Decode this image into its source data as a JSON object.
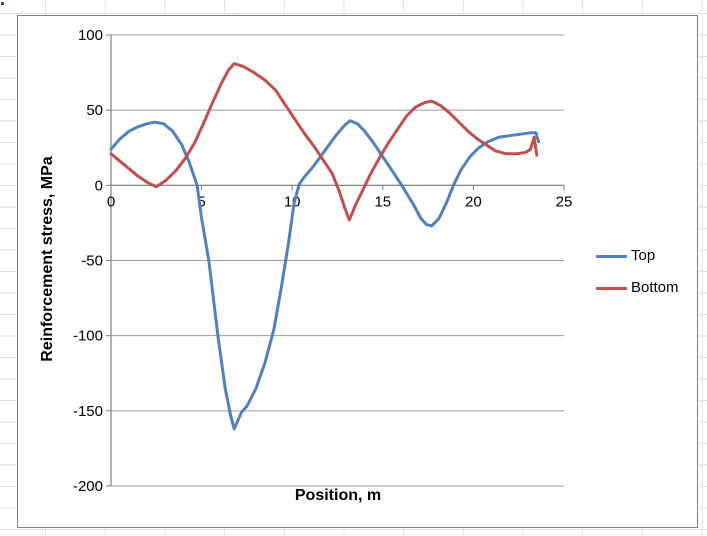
{
  "colors": {
    "series_top": "#4F81BD",
    "series_bottom": "#C0504D",
    "gridline": "#9b9b9b",
    "axis": "#7f7f7f",
    "text": "#000000",
    "chart_border": "#7e7e7e",
    "sheet_grid": "#dce2ec"
  },
  "legend": {
    "items": [
      {
        "label": "Top"
      },
      {
        "label": "Bottom"
      }
    ]
  },
  "chart_data": {
    "type": "line",
    "title": "",
    "xlabel": "Position, m",
    "ylabel": "Reinforcement stress, MPa",
    "xlim": [
      0,
      25
    ],
    "ylim": [
      -200,
      100
    ],
    "x_ticks": [
      0,
      5,
      10,
      15,
      20,
      25
    ],
    "y_ticks": [
      100,
      50,
      0,
      -50,
      -100,
      -150,
      -200
    ],
    "grid": "horizontal-major",
    "legend_position": "right",
    "series": [
      {
        "name": "Top",
        "color": "#4F81BD",
        "points": [
          [
            0,
            24
          ],
          [
            0.5,
            31
          ],
          [
            1,
            36
          ],
          [
            1.5,
            39
          ],
          [
            2,
            41
          ],
          [
            2.4,
            42
          ],
          [
            2.9,
            41
          ],
          [
            3.4,
            36
          ],
          [
            3.9,
            27
          ],
          [
            4.3,
            16
          ],
          [
            4.75,
            0
          ],
          [
            5,
            -22
          ],
          [
            5.4,
            -50
          ],
          [
            5.9,
            -100
          ],
          [
            6.3,
            -135
          ],
          [
            6.6,
            -153
          ],
          [
            6.8,
            -162
          ],
          [
            7.2,
            -151
          ],
          [
            7.5,
            -147
          ],
          [
            8,
            -135
          ],
          [
            8.5,
            -118
          ],
          [
            9,
            -95
          ],
          [
            9.4,
            -68
          ],
          [
            9.8,
            -38
          ],
          [
            10.1,
            -12
          ],
          [
            10.4,
            1
          ],
          [
            10.7,
            6
          ],
          [
            11.2,
            13
          ],
          [
            11.8,
            23
          ],
          [
            12.4,
            33
          ],
          [
            12.9,
            40
          ],
          [
            13.2,
            43
          ],
          [
            13.6,
            41
          ],
          [
            14,
            36
          ],
          [
            14.5,
            28
          ],
          [
            15,
            19
          ],
          [
            15.5,
            10
          ],
          [
            16.1,
            -1
          ],
          [
            16.7,
            -13
          ],
          [
            17.1,
            -22
          ],
          [
            17.4,
            -26
          ],
          [
            17.7,
            -27
          ],
          [
            18.1,
            -22
          ],
          [
            18.5,
            -12
          ],
          [
            18.9,
            0
          ],
          [
            19.3,
            10
          ],
          [
            19.8,
            19
          ],
          [
            20.3,
            25
          ],
          [
            20.8,
            29
          ],
          [
            21.4,
            32
          ],
          [
            22,
            33
          ],
          [
            22.6,
            34
          ],
          [
            23.2,
            35
          ],
          [
            23.45,
            35
          ],
          [
            23.6,
            29
          ]
        ]
      },
      {
        "name": "Bottom",
        "color": "#C0504D",
        "points": [
          [
            0,
            21
          ],
          [
            0.5,
            16
          ],
          [
            1,
            11
          ],
          [
            1.5,
            6
          ],
          [
            2,
            2
          ],
          [
            2.5,
            -1
          ],
          [
            3,
            3
          ],
          [
            3.6,
            10
          ],
          [
            4.1,
            18
          ],
          [
            4.6,
            28
          ],
          [
            5.1,
            41
          ],
          [
            5.6,
            55
          ],
          [
            6.1,
            68
          ],
          [
            6.5,
            77
          ],
          [
            6.8,
            81
          ],
          [
            7.3,
            79
          ],
          [
            7.9,
            75
          ],
          [
            8.5,
            70
          ],
          [
            9.1,
            63
          ],
          [
            9.7,
            52
          ],
          [
            10.2,
            43
          ],
          [
            10.7,
            34
          ],
          [
            11.2,
            26
          ],
          [
            11.7,
            17
          ],
          [
            12.2,
            8
          ],
          [
            12.6,
            -4
          ],
          [
            12.9,
            -15
          ],
          [
            13.15,
            -23
          ],
          [
            13.5,
            -13
          ],
          [
            13.9,
            -3
          ],
          [
            14.3,
            7
          ],
          [
            14.8,
            18
          ],
          [
            15.3,
            28
          ],
          [
            15.8,
            37
          ],
          [
            16.3,
            46
          ],
          [
            16.8,
            52
          ],
          [
            17.3,
            55
          ],
          [
            17.7,
            56
          ],
          [
            18.2,
            53
          ],
          [
            18.7,
            48
          ],
          [
            19.2,
            42
          ],
          [
            19.7,
            36
          ],
          [
            20.2,
            31
          ],
          [
            20.7,
            27
          ],
          [
            21.2,
            23
          ],
          [
            21.8,
            21
          ],
          [
            22.4,
            21
          ],
          [
            22.9,
            22
          ],
          [
            23.15,
            24
          ],
          [
            23.35,
            32
          ],
          [
            23.5,
            20
          ]
        ]
      }
    ]
  }
}
